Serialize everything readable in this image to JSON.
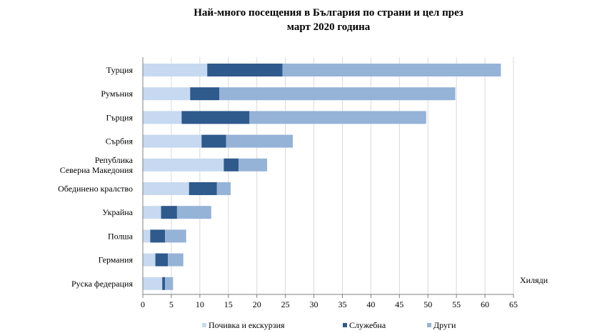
{
  "title_line1": "Най-много посещения в България по страни и цел през",
  "title_line2": "март 2020 година",
  "chart_data": {
    "type": "bar",
    "orientation": "horizontal",
    "stacked": true,
    "categories": [
      [
        "Турция"
      ],
      [
        "Румъния"
      ],
      [
        "Гърция"
      ],
      [
        "Сърбия"
      ],
      [
        "Република",
        "Северна Македония"
      ],
      [
        "Обединено кралство"
      ],
      [
        "Украйна"
      ],
      [
        "Полша"
      ],
      [
        "Германия"
      ],
      [
        "Руска федерация"
      ]
    ],
    "series": [
      {
        "name": "Почивка и екскурзия",
        "color": "#c6d9f1",
        "values": [
          11.3,
          8.3,
          6.8,
          10.3,
          14.2,
          8.1,
          3.2,
          1.3,
          2.2,
          3.4
        ]
      },
      {
        "name": "Служебна",
        "color": "#2e5a8c",
        "values": [
          13.2,
          5.1,
          11.9,
          4.3,
          2.6,
          4.9,
          2.8,
          2.6,
          2.2,
          0.5
        ]
      },
      {
        "name": "Други",
        "color": "#95b3d7",
        "values": [
          38.3,
          41.4,
          31.0,
          11.7,
          5.0,
          2.4,
          6.0,
          3.7,
          2.7,
          1.4
        ]
      }
    ],
    "xlim": [
      0,
      65
    ],
    "xticks": [
      0,
      5,
      10,
      15,
      20,
      25,
      30,
      35,
      40,
      45,
      50,
      55,
      60,
      65
    ],
    "unit_label": "Хиляди",
    "grid": true,
    "legend": "bottom"
  }
}
